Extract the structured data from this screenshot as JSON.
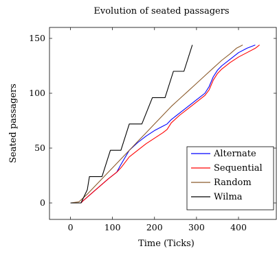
{
  "chart_data": {
    "type": "line",
    "title": "Evolution of seated passagers",
    "xlabel": "Time (Ticks)",
    "ylabel": "Seated passagers",
    "xlim": [
      -50,
      490
    ],
    "ylim": [
      -15,
      160
    ],
    "xticks": [
      0,
      100,
      200,
      300,
      400
    ],
    "yticks": [
      0,
      50,
      100,
      150
    ],
    "grid": false,
    "legend_position": "bottom-right",
    "series": [
      {
        "name": "Alternate",
        "color": "#0000ff",
        "points": [
          [
            0,
            0
          ],
          [
            25,
            0
          ],
          [
            30,
            2
          ],
          [
            60,
            12
          ],
          [
            90,
            22
          ],
          [
            110,
            28
          ],
          [
            120,
            35
          ],
          [
            140,
            48
          ],
          [
            160,
            55
          ],
          [
            180,
            61
          ],
          [
            200,
            66
          ],
          [
            220,
            70
          ],
          [
            230,
            72
          ],
          [
            240,
            76
          ],
          [
            260,
            82
          ],
          [
            280,
            88
          ],
          [
            300,
            94
          ],
          [
            320,
            100
          ],
          [
            330,
            106
          ],
          [
            340,
            115
          ],
          [
            350,
            121
          ],
          [
            360,
            125
          ],
          [
            380,
            131
          ],
          [
            400,
            137
          ],
          [
            420,
            141
          ],
          [
            440,
            144
          ]
        ]
      },
      {
        "name": "Sequential",
        "color": "#ff0000",
        "points": [
          [
            0,
            0
          ],
          [
            25,
            0
          ],
          [
            30,
            2
          ],
          [
            60,
            12
          ],
          [
            90,
            22
          ],
          [
            110,
            28
          ],
          [
            120,
            32
          ],
          [
            140,
            42
          ],
          [
            160,
            48
          ],
          [
            180,
            54
          ],
          [
            200,
            59
          ],
          [
            220,
            64
          ],
          [
            230,
            67
          ],
          [
            240,
            73
          ],
          [
            260,
            80
          ],
          [
            280,
            86
          ],
          [
            300,
            92
          ],
          [
            320,
            98
          ],
          [
            330,
            103
          ],
          [
            340,
            112
          ],
          [
            350,
            118
          ],
          [
            360,
            122
          ],
          [
            380,
            128
          ],
          [
            400,
            133
          ],
          [
            420,
            137
          ],
          [
            440,
            141
          ],
          [
            450,
            144
          ]
        ]
      },
      {
        "name": "Random",
        "color": "#8b5a2b",
        "points": [
          [
            0,
            0
          ],
          [
            20,
            1
          ],
          [
            40,
            8
          ],
          [
            60,
            16
          ],
          [
            80,
            24
          ],
          [
            100,
            32
          ],
          [
            120,
            40
          ],
          [
            140,
            48
          ],
          [
            160,
            56
          ],
          [
            180,
            64
          ],
          [
            200,
            72
          ],
          [
            220,
            80
          ],
          [
            240,
            88
          ],
          [
            260,
            95
          ],
          [
            280,
            102
          ],
          [
            300,
            109
          ],
          [
            320,
            116
          ],
          [
            340,
            123
          ],
          [
            360,
            130
          ],
          [
            380,
            136
          ],
          [
            395,
            141
          ],
          [
            410,
            144
          ]
        ]
      },
      {
        "name": "Wilma",
        "color": "#000000",
        "points": [
          [
            0,
            0
          ],
          [
            25,
            0
          ],
          [
            40,
            12
          ],
          [
            45,
            24
          ],
          [
            75,
            24
          ],
          [
            95,
            48
          ],
          [
            120,
            48
          ],
          [
            140,
            72
          ],
          [
            170,
            72
          ],
          [
            195,
            96
          ],
          [
            225,
            96
          ],
          [
            245,
            120
          ],
          [
            270,
            120
          ],
          [
            290,
            144
          ]
        ]
      }
    ]
  }
}
